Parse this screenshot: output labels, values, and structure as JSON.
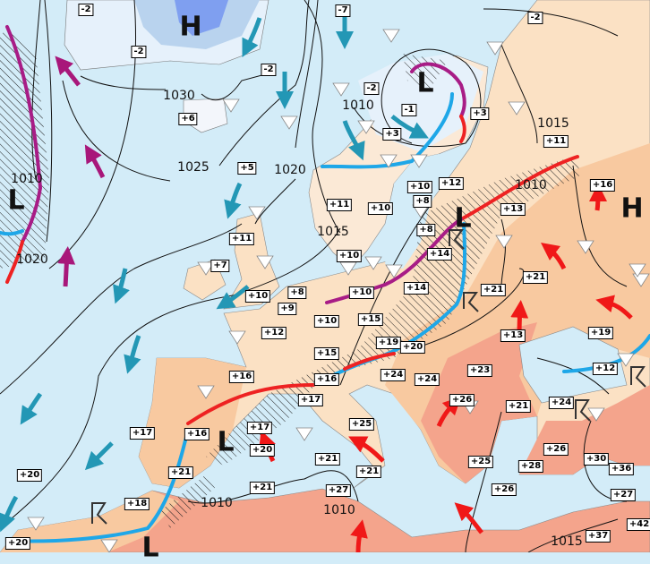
{
  "colors": {
    "sea": "#d3ecf8",
    "land": "#fbe1c4",
    "land_warm": "#f8c9a0",
    "land_hot": "#f4a48c",
    "ice": "#b9d3ee",
    "cold_front": "#1ea7e8",
    "warm_front": "#ee2222",
    "occluded_front": "#a81c86",
    "cold_air_arrow": "#2397b5",
    "warm_air_arrow": "#f01818",
    "moist_air_arrow": "#a8177a"
  },
  "pressure_centers": [
    "H",
    "L",
    "L",
    "H",
    "L",
    "L",
    "L"
  ],
  "isobar_labels": [
    "1030",
    "1025",
    "1020",
    "1010",
    "1020",
    "1015",
    "1010",
    "1015",
    "1010",
    "1010",
    "1010",
    "1015"
  ],
  "temperatures": [
    "-2",
    "-2",
    "-2",
    "+6",
    "+5",
    "+11",
    "+7",
    "-7",
    "-2",
    "-2",
    "-1",
    "+3",
    "+3",
    "+11",
    "+16",
    "+10",
    "+12",
    "+8",
    "+11",
    "+10",
    "+13",
    "+8",
    "+14",
    "+10",
    "+10",
    "+8",
    "+9",
    "+10",
    "+10",
    "+14",
    "+21",
    "+21",
    "+15",
    "+12",
    "+13",
    "+19",
    "+15",
    "+19",
    "+20",
    "+16",
    "+16",
    "+17",
    "+24",
    "+24",
    "+23",
    "+12",
    "+24",
    "+26",
    "+21",
    "+17",
    "+16",
    "+17",
    "+20",
    "+25",
    "+21",
    "+18",
    "+21",
    "+21",
    "+21",
    "+27",
    "+25",
    "+28",
    "+26",
    "+26",
    "+30",
    "+36",
    "+27",
    "+42",
    "+37",
    "+20",
    "+20"
  ],
  "symbols": {
    "snow": "snow-asterisk-icon",
    "shower": "shower-triangle-icon",
    "thunderstorm": "thunderstorm-icon"
  }
}
